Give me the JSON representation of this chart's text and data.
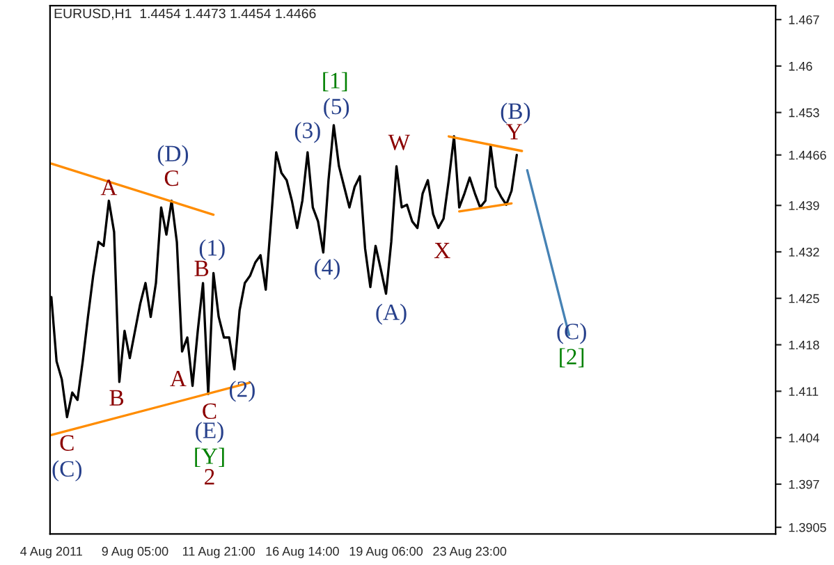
{
  "chart_data": {
    "type": "line",
    "title": "EURUSD,H1  1.4454 1.4473 1.4454 1.4466",
    "ylim": [
      1.3895,
      1.4691
    ],
    "yticks": [
      1.467,
      1.46,
      1.453,
      1.4466,
      1.439,
      1.432,
      1.425,
      1.418,
      1.411,
      1.404,
      1.397,
      1.3905
    ],
    "categories": [
      "4 Aug 2011",
      null,
      null,
      null,
      null,
      null,
      null,
      null,
      null,
      null,
      null,
      null,
      null,
      null,
      null,
      null,
      "9 Aug 05:00",
      null,
      null,
      null,
      null,
      null,
      null,
      null,
      null,
      null,
      null,
      null,
      null,
      null,
      null,
      null,
      "11 Aug 21:00",
      null,
      null,
      null,
      null,
      null,
      null,
      null,
      null,
      null,
      null,
      null,
      null,
      null,
      null,
      null,
      "16 Aug 14:00",
      null,
      null,
      null,
      null,
      null,
      null,
      null,
      null,
      null,
      null,
      null,
      null,
      null,
      null,
      null,
      "19 Aug 06:00",
      null,
      null,
      null,
      null,
      null,
      null,
      null,
      null,
      null,
      null,
      null,
      null,
      null,
      null,
      null,
      "23 Aug 23:00",
      null,
      null,
      null,
      null,
      null,
      null,
      null,
      null,
      null,
      null,
      null,
      null,
      null,
      null,
      null,
      null,
      null,
      null,
      null,
      null,
      null,
      null,
      null,
      null,
      null,
      null,
      null,
      null,
      null,
      null,
      null,
      null,
      null,
      null,
      null,
      null,
      null,
      null,
      null,
      null,
      null,
      null,
      null,
      null,
      null,
      null,
      null,
      null,
      null,
      null,
      null,
      null,
      null,
      null,
      null,
      null,
      null,
      null
    ],
    "grid": false,
    "legend": false,
    "marker": "none",
    "line_style": "solid",
    "series": [
      {
        "color": "#000000",
        "values": [
          1.4252,
          1.4155,
          1.4128,
          1.4071,
          1.4108,
          1.4097,
          1.4155,
          1.4222,
          1.4284,
          1.4335,
          1.4329,
          1.4397,
          1.435,
          1.4124,
          1.4201,
          1.416,
          1.4201,
          1.4242,
          1.4273,
          1.4222,
          1.4273,
          1.4387,
          1.4346,
          1.4397,
          1.4335,
          1.417,
          1.4191,
          1.4118,
          1.4201,
          1.4273,
          1.4106,
          1.4288,
          1.4222,
          1.4191,
          1.4191,
          1.4143,
          1.4232,
          1.4273,
          1.4284,
          1.4304,
          1.4315,
          1.4263,
          1.4366,
          1.447,
          1.4439,
          1.4428,
          1.4397,
          1.4356,
          1.4397,
          1.447,
          1.4387,
          1.4366,
          1.4319,
          1.4428,
          1.4511,
          1.4449,
          1.4418,
          1.4387,
          1.4418,
          1.4434,
          1.4325,
          1.4267,
          1.4329,
          1.4294,
          1.4257,
          1.4335,
          1.4449,
          1.4387,
          1.4391,
          1.4366,
          1.4356,
          1.4408,
          1.4428,
          1.4377,
          1.4356,
          1.437,
          1.4428,
          1.4494,
          1.4387,
          1.4408,
          1.4432,
          1.4408,
          1.4387,
          1.4397,
          1.448,
          1.4418,
          1.4403,
          1.4391,
          1.4412,
          1.4466,
          null,
          null,
          null,
          null,
          null,
          null,
          null,
          null,
          null,
          null,
          null,
          null,
          null,
          null,
          null,
          null,
          null,
          null,
          null,
          null,
          null,
          null,
          null,
          null,
          null,
          null,
          null,
          null,
          null,
          null,
          null,
          null,
          null,
          null,
          null,
          null,
          null,
          null,
          null,
          null,
          null,
          null,
          null,
          null,
          null,
          null,
          null,
          null,
          null
        ]
      },
      {
        "color": "#ff8c00",
        "values": [
          1.4453,
          null,
          null,
          null,
          null,
          null,
          null,
          null,
          null,
          null,
          null,
          null,
          null,
          null,
          null,
          null,
          null,
          null,
          null,
          null,
          null,
          null,
          null,
          null,
          null,
          null,
          null,
          null,
          null,
          null,
          null,
          1.4376,
          null,
          null,
          null,
          null,
          null,
          null,
          null,
          null,
          null,
          null,
          null,
          null,
          null,
          null,
          null,
          null,
          null,
          null,
          null,
          null,
          null,
          null,
          null,
          null,
          null,
          null,
          null,
          null,
          null,
          null,
          null,
          null,
          null,
          null,
          null,
          null,
          null,
          null,
          null,
          null,
          null,
          null,
          null,
          null,
          null,
          null,
          null,
          null,
          null,
          null,
          null,
          null,
          null,
          null,
          null,
          null,
          null,
          null,
          null,
          null,
          null,
          null,
          null,
          null,
          null,
          null,
          null,
          null,
          null,
          null,
          null,
          null,
          null,
          null,
          null,
          null,
          null,
          null,
          null,
          null,
          null,
          null,
          null,
          null,
          null,
          null,
          null,
          null,
          null,
          null,
          null,
          null,
          null,
          null,
          null,
          null,
          null,
          null,
          null,
          null,
          null,
          null,
          null,
          null,
          null,
          null,
          null
        ]
      },
      {
        "color": "#ff8c00",
        "values": [
          1.4044,
          null,
          null,
          null,
          null,
          null,
          null,
          null,
          null,
          null,
          null,
          null,
          null,
          null,
          null,
          null,
          null,
          null,
          null,
          null,
          null,
          null,
          null,
          null,
          null,
          null,
          null,
          null,
          null,
          null,
          null,
          null,
          null,
          null,
          null,
          null,
          null,
          null,
          1.4123,
          null,
          null,
          null,
          null,
          null,
          null,
          null,
          null,
          null,
          null,
          null,
          null,
          null,
          null,
          null,
          null,
          null,
          null,
          null,
          null,
          null,
          null,
          null,
          null,
          null,
          null,
          null,
          null,
          null,
          null,
          null,
          null,
          null,
          null,
          null,
          null,
          null,
          null,
          null,
          null,
          null,
          null,
          null,
          null,
          null,
          null,
          null,
          null,
          null,
          null,
          null,
          null,
          null,
          null,
          null,
          null,
          null,
          null,
          null,
          null,
          null,
          null,
          null,
          null,
          null,
          null,
          null,
          null,
          null,
          null,
          null,
          null,
          null,
          null,
          null,
          null,
          null,
          null,
          null,
          null,
          null,
          null,
          null,
          null,
          null,
          null,
          null,
          null,
          null,
          null,
          null,
          null,
          null,
          null,
          null,
          null,
          null,
          null,
          null,
          null
        ]
      },
      {
        "color": "#ff8c00",
        "values": [
          null,
          null,
          null,
          null,
          null,
          null,
          null,
          null,
          null,
          null,
          null,
          null,
          null,
          null,
          null,
          null,
          null,
          null,
          null,
          null,
          null,
          null,
          null,
          null,
          null,
          null,
          null,
          null,
          null,
          null,
          null,
          null,
          null,
          null,
          null,
          null,
          null,
          null,
          null,
          null,
          null,
          null,
          null,
          null,
          null,
          null,
          null,
          null,
          null,
          null,
          null,
          null,
          null,
          null,
          null,
          null,
          null,
          null,
          null,
          null,
          null,
          null,
          null,
          null,
          null,
          null,
          null,
          null,
          null,
          null,
          null,
          null,
          null,
          null,
          null,
          null,
          1.4494,
          null,
          null,
          null,
          null,
          null,
          null,
          null,
          null,
          null,
          null,
          null,
          null,
          null,
          1.4472,
          null,
          null,
          null,
          null,
          null,
          null,
          null,
          null,
          null,
          null,
          null,
          null,
          null,
          null,
          null,
          null,
          null,
          null,
          null,
          null,
          null,
          null,
          null,
          null,
          null,
          null,
          null,
          null,
          null,
          null,
          null,
          null,
          null,
          null,
          null,
          null,
          null,
          null,
          null,
          null,
          null,
          null,
          null,
          null,
          null,
          null,
          null,
          null
        ]
      },
      {
        "color": "#ff8c00",
        "values": [
          null,
          null,
          null,
          null,
          null,
          null,
          null,
          null,
          null,
          null,
          null,
          null,
          null,
          null,
          null,
          null,
          null,
          null,
          null,
          null,
          null,
          null,
          null,
          null,
          null,
          null,
          null,
          null,
          null,
          null,
          null,
          null,
          null,
          null,
          null,
          null,
          null,
          null,
          null,
          null,
          null,
          null,
          null,
          null,
          null,
          null,
          null,
          null,
          null,
          null,
          null,
          null,
          null,
          null,
          null,
          null,
          null,
          null,
          null,
          null,
          null,
          null,
          null,
          null,
          null,
          null,
          null,
          null,
          null,
          null,
          null,
          null,
          null,
          null,
          null,
          null,
          null,
          null,
          1.4381,
          null,
          null,
          null,
          null,
          null,
          null,
          null,
          null,
          null,
          1.4393,
          null,
          null,
          null,
          null,
          null,
          null,
          null,
          null,
          null,
          null,
          null,
          null,
          null,
          null,
          null,
          null,
          null,
          null,
          null,
          null,
          null,
          null,
          null,
          null,
          null,
          null,
          null,
          null,
          null,
          null,
          null,
          null,
          null,
          null,
          null,
          null,
          null,
          null,
          null,
          null,
          null,
          null,
          null,
          null,
          null,
          null,
          null,
          null,
          null,
          null
        ]
      },
      {
        "color": "#4682b4",
        "values": [
          null,
          null,
          null,
          null,
          null,
          null,
          null,
          null,
          null,
          null,
          null,
          null,
          null,
          null,
          null,
          null,
          null,
          null,
          null,
          null,
          null,
          null,
          null,
          null,
          null,
          null,
          null,
          null,
          null,
          null,
          null,
          null,
          null,
          null,
          null,
          null,
          null,
          null,
          null,
          null,
          null,
          null,
          null,
          null,
          null,
          null,
          null,
          null,
          null,
          null,
          null,
          null,
          null,
          null,
          null,
          null,
          null,
          null,
          null,
          null,
          null,
          null,
          null,
          null,
          null,
          null,
          null,
          null,
          null,
          null,
          null,
          null,
          null,
          null,
          null,
          null,
          null,
          null,
          null,
          null,
          null,
          null,
          null,
          null,
          null,
          null,
          null,
          null,
          null,
          null,
          null,
          1.4443,
          null,
          null,
          null,
          null,
          null,
          null,
          null,
          1.4195,
          null,
          null,
          null,
          null,
          null,
          null,
          null,
          null,
          null,
          null,
          null,
          null,
          null,
          null,
          null,
          null,
          null,
          null,
          null,
          null,
          null,
          null,
          null,
          null,
          null,
          null,
          null,
          null,
          null,
          null,
          null,
          null,
          null,
          null,
          null,
          null,
          null,
          null,
          null
        ]
      }
    ],
    "annotations": [
      "C",
      "(C)",
      "A",
      "B",
      "(D)",
      "C",
      "A",
      "(1)",
      "B",
      "(2)",
      "C",
      "(E)",
      "[Y]",
      "2",
      "(3)",
      "[1]",
      "(5)",
      "(4)",
      "W",
      "(A)",
      "X",
      "(B)",
      "Y",
      "(C)",
      "[2]"
    ]
  }
}
